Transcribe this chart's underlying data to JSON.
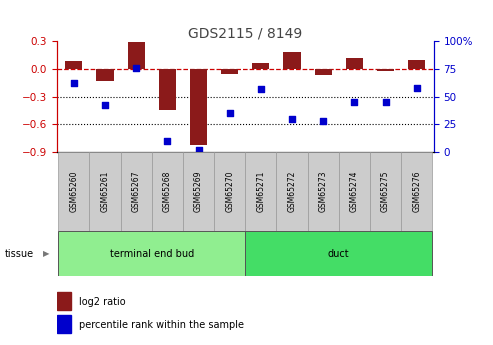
{
  "title": "GDS2115 / 8149",
  "samples": [
    "GSM65260",
    "GSM65261",
    "GSM65267",
    "GSM65268",
    "GSM65269",
    "GSM65270",
    "GSM65271",
    "GSM65272",
    "GSM65273",
    "GSM65274",
    "GSM65275",
    "GSM65276"
  ],
  "log2_ratio": [
    0.09,
    -0.13,
    0.29,
    -0.45,
    -0.83,
    -0.05,
    0.07,
    0.19,
    -0.07,
    0.12,
    -0.02,
    0.1
  ],
  "percentile_rank": [
    62,
    42,
    76,
    10,
    2,
    35,
    57,
    30,
    28,
    45,
    45,
    58
  ],
  "groups": [
    {
      "label": "terminal end bud",
      "start": 0,
      "end": 6,
      "color": "#90EE90"
    },
    {
      "label": "duct",
      "start": 6,
      "end": 12,
      "color": "#44DD66"
    }
  ],
  "bar_color": "#8B1A1A",
  "dot_color": "#0000CC",
  "dashed_line_color": "#CC0000",
  "ylim_left": [
    -0.9,
    0.3
  ],
  "ylim_right": [
    0,
    100
  ],
  "yticks_left": [
    -0.9,
    -0.6,
    -0.3,
    0.0,
    0.3
  ],
  "yticks_right": [
    0,
    25,
    50,
    75,
    100
  ],
  "background_color": "#ffffff",
  "plot_bg_color": "#ffffff",
  "grid_color": "#000000",
  "tissue_label": "tissue",
  "legend_log2": "log2 ratio",
  "legend_pct": "percentile rank within the sample",
  "sample_box_color": "#CCCCCC",
  "sample_box_edge": "#999999",
  "left_axis_color": "#CC0000",
  "right_axis_color": "#0000CC"
}
